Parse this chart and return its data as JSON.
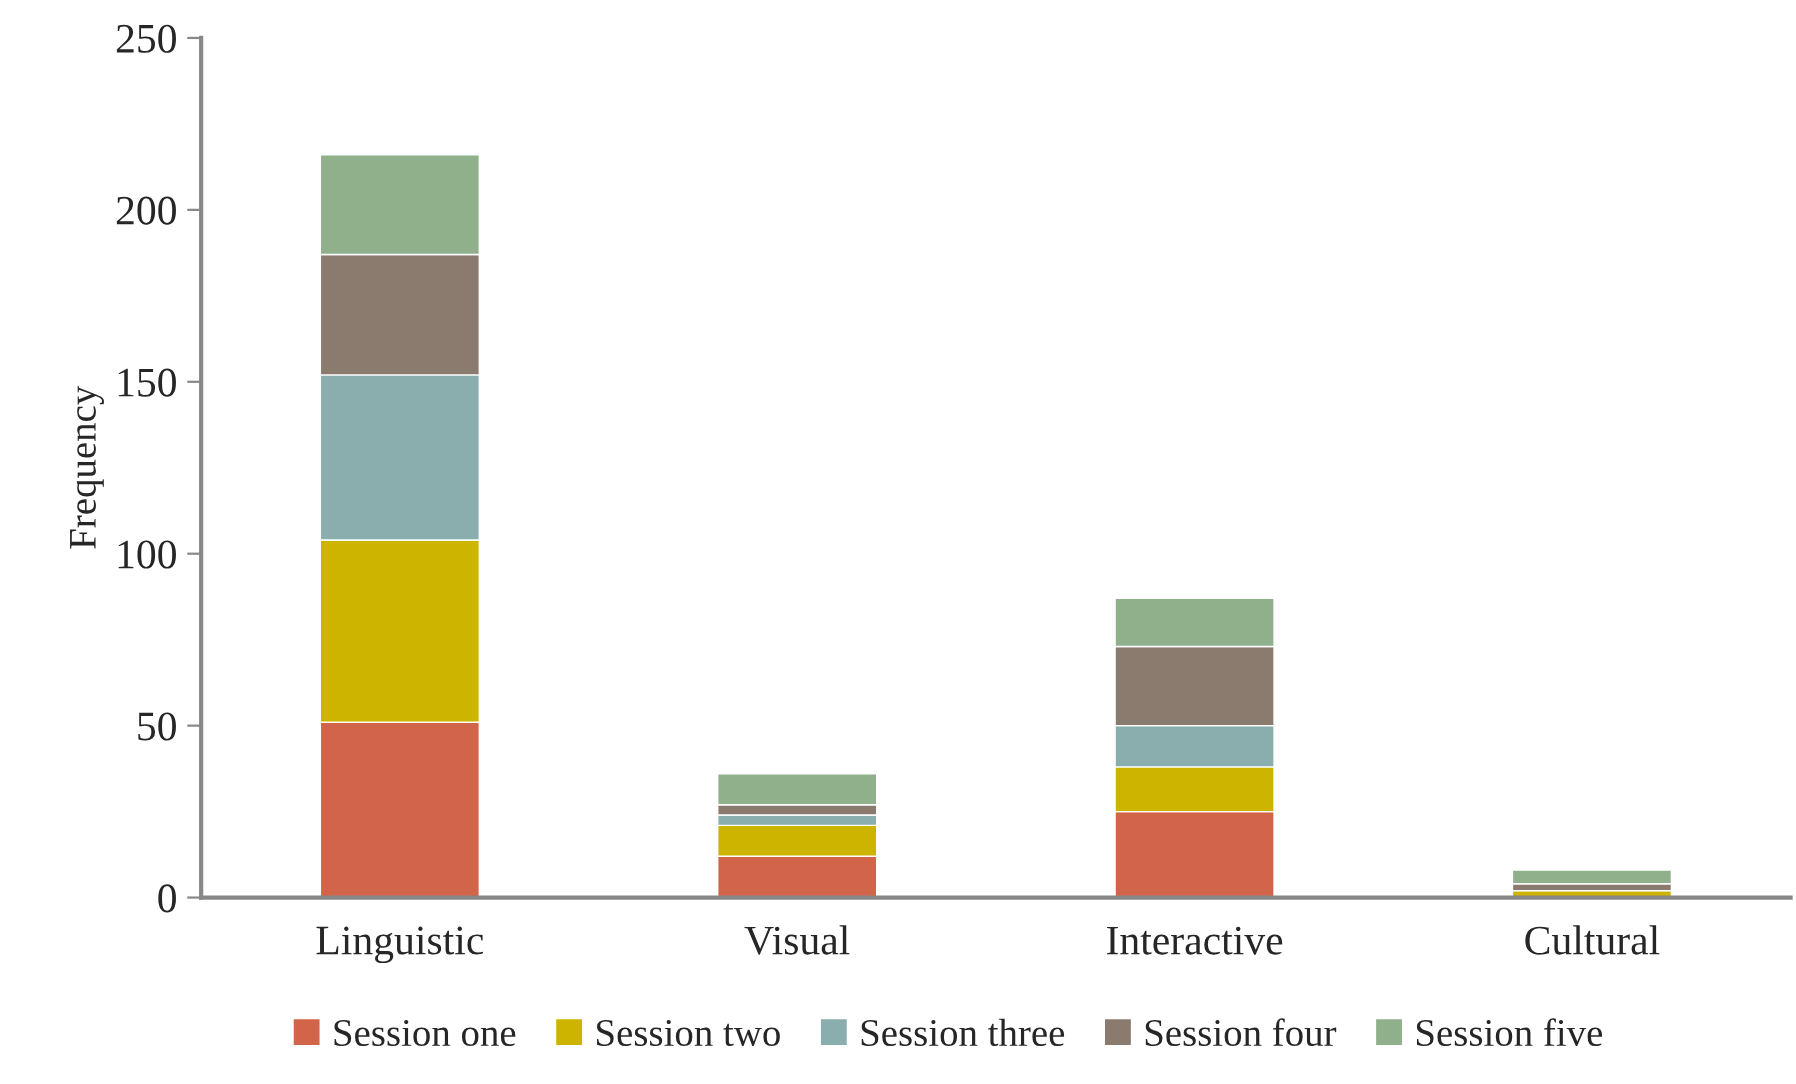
{
  "chart_data": {
    "type": "bar",
    "stacked": true,
    "ylabel": "Frequency",
    "categories": [
      "Linguistic",
      "Visual",
      "Interactive",
      "Cultural"
    ],
    "series": [
      {
        "name": "Session one",
        "color": "#d2644a",
        "values": [
          51,
          12,
          25,
          0
        ]
      },
      {
        "name": "Session two",
        "color": "#ccb400",
        "values": [
          53,
          9,
          13,
          2
        ]
      },
      {
        "name": "Session three",
        "color": "#8aadad",
        "values": [
          48,
          3,
          12,
          0
        ]
      },
      {
        "name": "Session four",
        "color": "#8b7b6f",
        "values": [
          35,
          3,
          23,
          2
        ]
      },
      {
        "name": "Session five",
        "color": "#90b08c",
        "values": [
          29,
          9,
          14,
          4
        ]
      }
    ],
    "ylim": [
      0,
      250
    ],
    "yticks": [
      0,
      50,
      100,
      150,
      200,
      250
    ],
    "grid": false,
    "legend": "bottom"
  }
}
